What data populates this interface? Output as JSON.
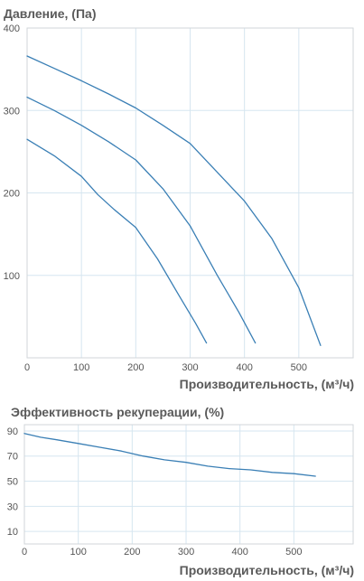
{
  "colors": {
    "series": "#3a7fb5",
    "grid": "#d6e6f0",
    "text": "#555555"
  },
  "chart_data": [
    {
      "type": "line",
      "title": "Давление, (Па)",
      "xlabel": "Производительность, (м³/ч)",
      "ylabel": "",
      "xlim": [
        0,
        600
      ],
      "ylim": [
        0,
        400
      ],
      "xticks": [
        0,
        100,
        200,
        300,
        400,
        500
      ],
      "yticks": [
        100,
        200,
        300,
        400
      ],
      "grid": true,
      "series": [
        {
          "x": [
            0,
            50,
            100,
            130,
            160,
            200,
            240,
            280,
            310,
            330
          ],
          "y": [
            265,
            245,
            220,
            198,
            180,
            158,
            120,
            75,
            42,
            18
          ]
        },
        {
          "x": [
            0,
            50,
            100,
            150,
            200,
            250,
            300,
            350,
            390,
            420
          ],
          "y": [
            316,
            300,
            282,
            262,
            240,
            205,
            160,
            100,
            55,
            18
          ]
        },
        {
          "x": [
            0,
            50,
            100,
            150,
            200,
            250,
            300,
            350,
            400,
            450,
            500,
            540
          ],
          "y": [
            366,
            351,
            336,
            320,
            303,
            282,
            260,
            225,
            190,
            145,
            85,
            15
          ]
        }
      ]
    },
    {
      "type": "line",
      "title": "Эффективность рекуперации, (%)",
      "xlabel": "Производительность, (м³/ч)",
      "ylabel": "",
      "xlim": [
        0,
        610
      ],
      "ylim": [
        0,
        95
      ],
      "xticks": [
        0,
        100,
        200,
        300,
        400,
        500
      ],
      "yticks": [
        10,
        30,
        50,
        70,
        90
      ],
      "grid": true,
      "series": [
        {
          "x": [
            0,
            30,
            60,
            100,
            140,
            180,
            220,
            260,
            300,
            340,
            380,
            420,
            460,
            500,
            540
          ],
          "y": [
            88,
            85,
            83,
            80,
            77,
            74,
            70,
            67,
            65,
            62,
            60,
            59,
            57,
            56,
            54
          ]
        }
      ]
    }
  ]
}
